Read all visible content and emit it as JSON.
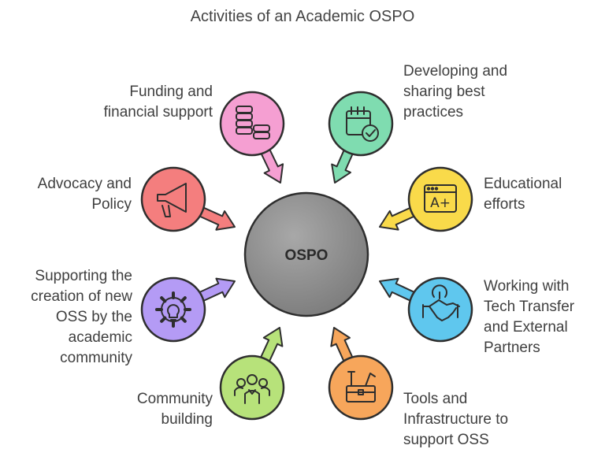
{
  "title": "Activities of an Academic OSPO",
  "hub": {
    "label": "OSPO",
    "color": "#8f8f8f"
  },
  "items": [
    {
      "id": "funding",
      "lines": [
        "Funding and",
        "financial support"
      ],
      "color": "#f59fd2",
      "icon": "coins-icon"
    },
    {
      "id": "practices",
      "lines": [
        "Developing and",
        "sharing best",
        "practices"
      ],
      "color": "#7fdcb0",
      "icon": "calendar-check-icon"
    },
    {
      "id": "education",
      "lines": [
        "Educational",
        "efforts"
      ],
      "color": "#f9da4a",
      "icon": "browser-grade-icon"
    },
    {
      "id": "techtransfer",
      "lines": [
        "Working with",
        "Tech Transfer",
        "and External",
        "Partners"
      ],
      "color": "#5fc7ee",
      "icon": "handshake-icon"
    },
    {
      "id": "tools",
      "lines": [
        "Tools and",
        "Infrastructure to",
        "support OSS"
      ],
      "color": "#f7a65b",
      "icon": "toolbox-icon"
    },
    {
      "id": "community",
      "lines": [
        "Community",
        "building"
      ],
      "color": "#b7e27a",
      "icon": "people-icon"
    },
    {
      "id": "oss",
      "lines": [
        "Supporting the",
        "creation of new",
        "OSS by the",
        "academic",
        "community"
      ],
      "color": "#b49bf5",
      "icon": "gear-bulb-icon"
    },
    {
      "id": "advocacy",
      "lines": [
        "Advocacy and",
        "Policy"
      ],
      "color": "#f47e7e",
      "icon": "megaphone-icon"
    }
  ]
}
